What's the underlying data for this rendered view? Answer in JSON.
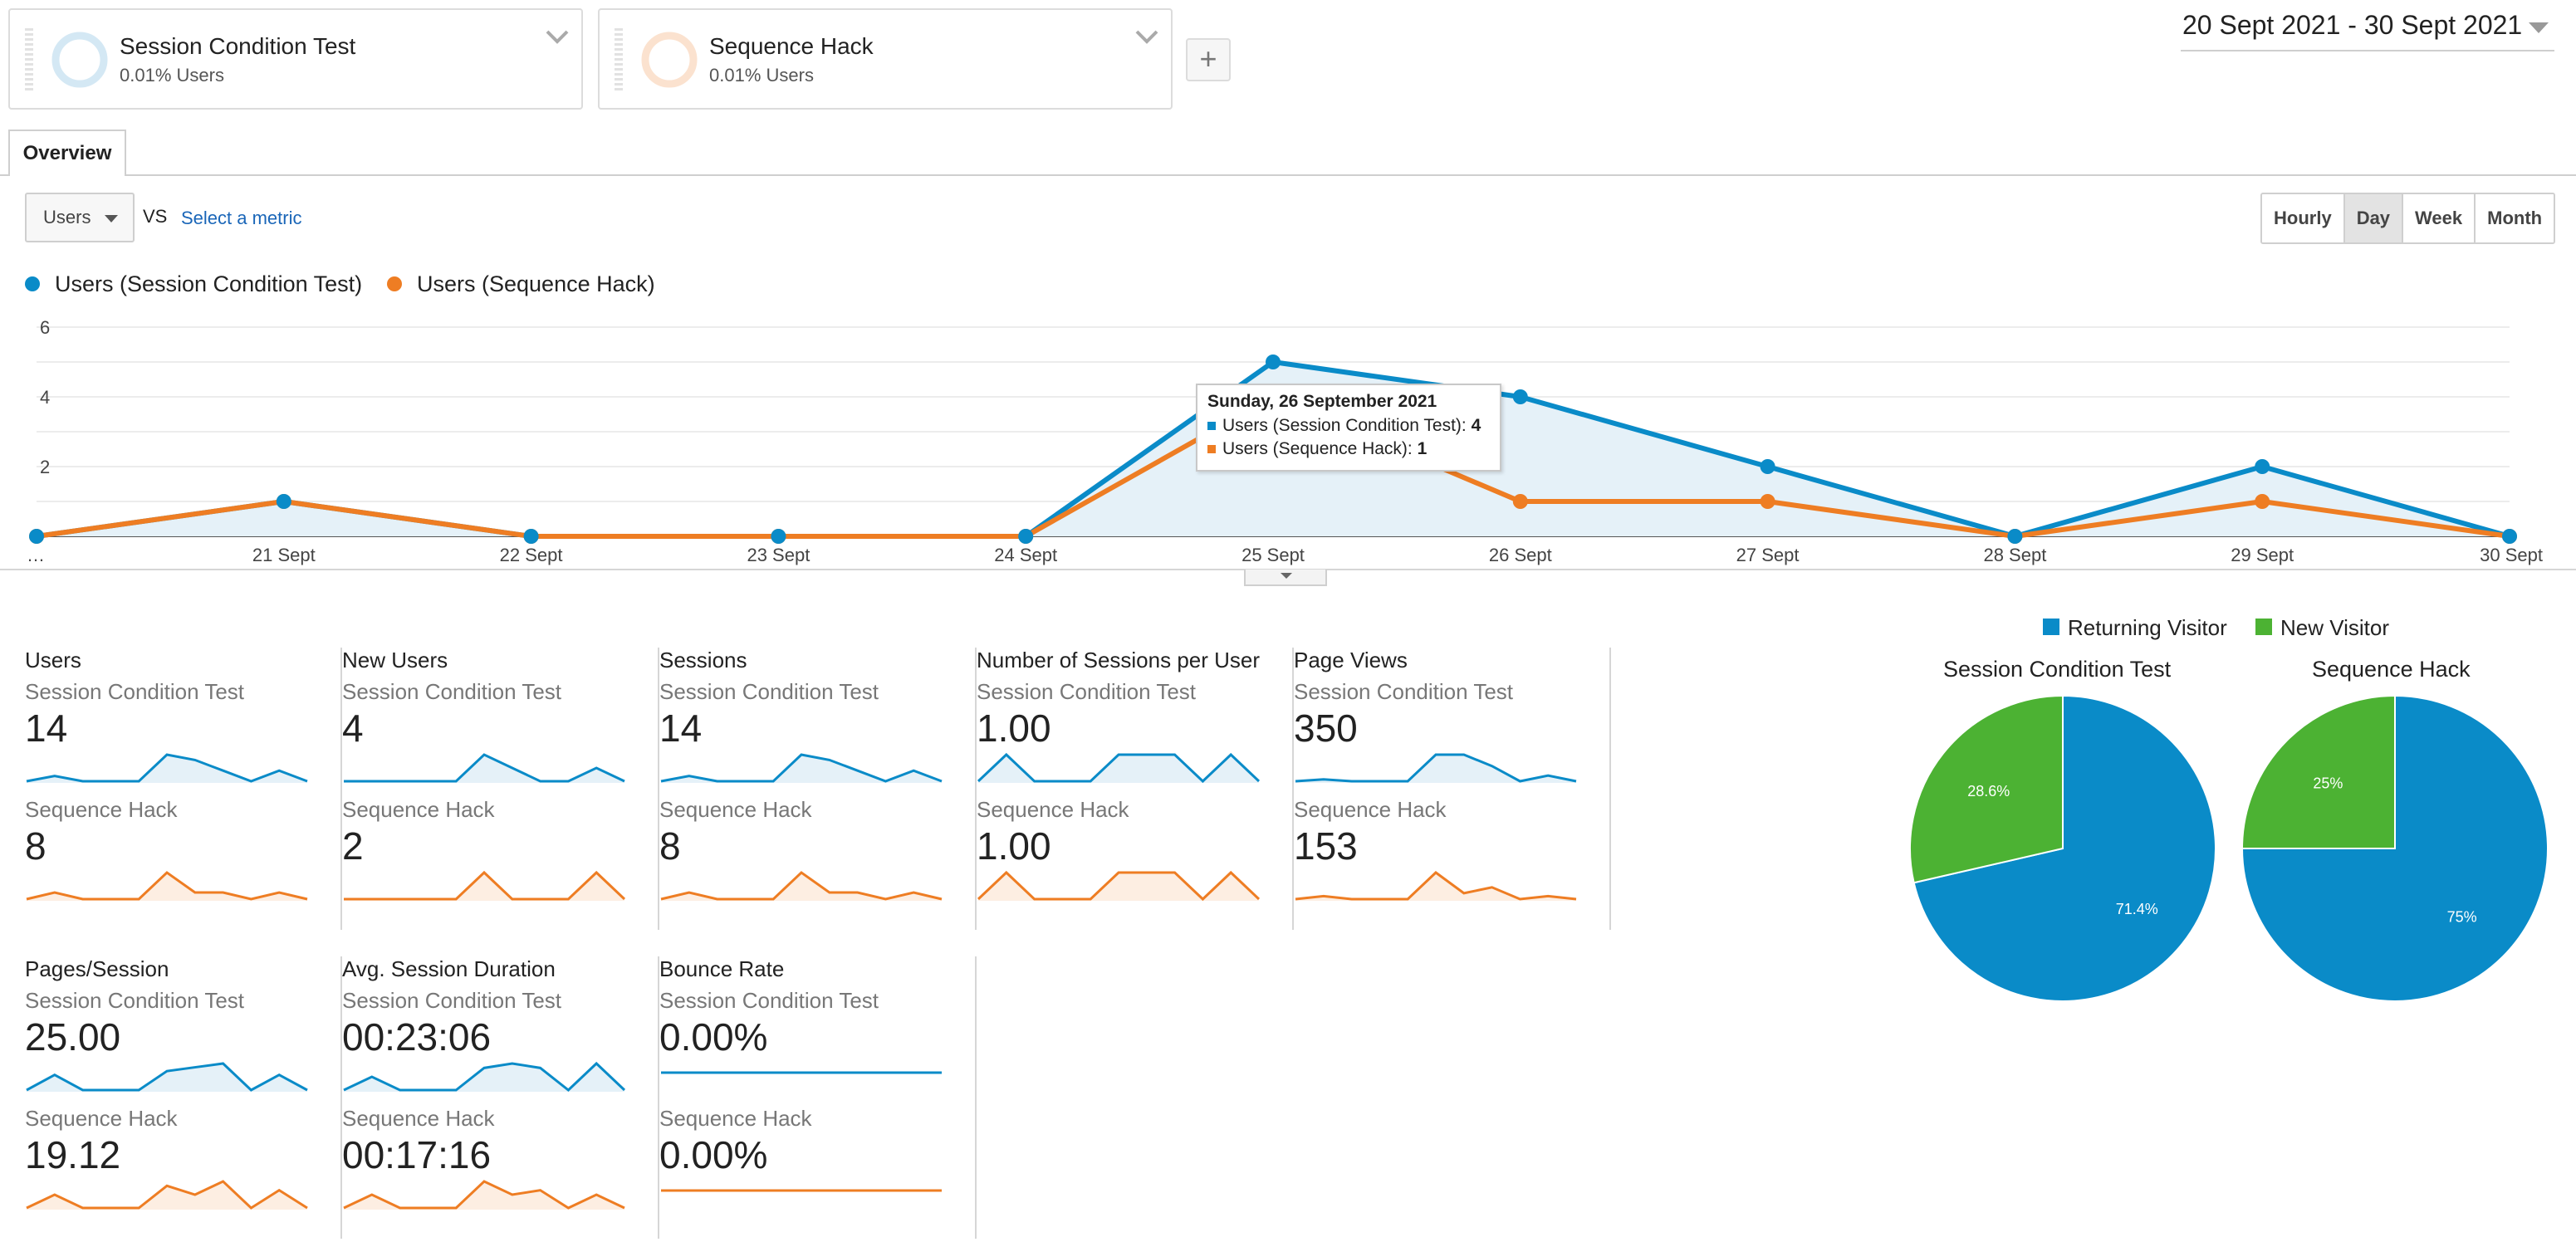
{
  "colors": {
    "series_a": "#0a8bc8",
    "series_b": "#ee7d23",
    "returning": "#0a8bc8",
    "new": "#4cb233"
  },
  "segments": [
    {
      "name": "Session Condition Test",
      "sub": "0.01% Users"
    },
    {
      "name": "Sequence Hack",
      "sub": "0.01% Users"
    }
  ],
  "add_segment": "+",
  "date_range": "20 Sept 2021 - 30 Sept 2021",
  "tabs": {
    "overview": "Overview"
  },
  "metric": {
    "selected": "Users",
    "vs": "VS",
    "select_metric": "Select a metric"
  },
  "granularity": [
    {
      "label": "Hourly",
      "active": false
    },
    {
      "label": "Day",
      "active": true
    },
    {
      "label": "Week",
      "active": false
    },
    {
      "label": "Month",
      "active": false
    }
  ],
  "legend": {
    "a": "Users (Session Condition Test)",
    "b": "Users (Sequence Hack)"
  },
  "chart_data": {
    "type": "line",
    "x": [
      "…",
      "21 Sept",
      "22 Sept",
      "23 Sept",
      "24 Sept",
      "25 Sept",
      "26 Sept",
      "27 Sept",
      "28 Sept",
      "29 Sept",
      "30 Sept"
    ],
    "series": [
      {
        "name": "Users (Session Condition Test)",
        "values": [
          0,
          1,
          0,
          0,
          0,
          5,
          4,
          2,
          0,
          2,
          0
        ]
      },
      {
        "name": "Users (Sequence Hack)",
        "values": [
          0,
          1,
          0,
          0,
          0,
          4,
          1,
          1,
          0,
          1,
          0
        ]
      }
    ],
    "yticks": [
      "2",
      "4",
      "6"
    ],
    "ylim": [
      0,
      6
    ],
    "grid": true,
    "fill_series": 0
  },
  "tooltip": {
    "title": "Sunday, 26 September 2021",
    "row_a_label": "Users (Session Condition Test):",
    "row_a_value": "4",
    "row_b_label": "Users (Sequence Hack):",
    "row_b_value": "1"
  },
  "scorecards": [
    {
      "title": "Users",
      "seg1": "Session Condition Test",
      "val1": "14",
      "seg2": "Sequence Hack",
      "val2": "8",
      "spark1": [
        0,
        1,
        0,
        0,
        0,
        5,
        4,
        2,
        0,
        2,
        0
      ],
      "spark2": [
        0,
        1,
        0,
        0,
        0,
        4,
        1,
        1,
        0,
        1,
        0
      ]
    },
    {
      "title": "New Users",
      "seg1": "Session Condition Test",
      "val1": "4",
      "seg2": "Sequence Hack",
      "val2": "2",
      "spark1": [
        0,
        0,
        0,
        0,
        0,
        2,
        1,
        0,
        0,
        1,
        0
      ],
      "spark2": [
        0,
        0,
        0,
        0,
        0,
        1,
        0,
        0,
        0,
        1,
        0
      ]
    },
    {
      "title": "Sessions",
      "seg1": "Session Condition Test",
      "val1": "14",
      "seg2": "Sequence Hack",
      "val2": "8",
      "spark1": [
        0,
        1,
        0,
        0,
        0,
        5,
        4,
        2,
        0,
        2,
        0
      ],
      "spark2": [
        0,
        1,
        0,
        0,
        0,
        4,
        1,
        1,
        0,
        1,
        0
      ]
    },
    {
      "title": "Number of Sessions per User",
      "seg1": "Session Condition Test",
      "val1": "1.00",
      "seg2": "Sequence Hack",
      "val2": "1.00",
      "spark1": [
        0,
        1,
        0,
        0,
        0,
        1,
        1,
        1,
        0,
        1,
        0
      ],
      "spark2": [
        0,
        1,
        0,
        0,
        0,
        1,
        1,
        1,
        0,
        1,
        0
      ]
    },
    {
      "title": "Page Views",
      "seg1": "Session Condition Test",
      "val1": "350",
      "seg2": "Sequence Hack",
      "val2": "153",
      "spark1": [
        0,
        1,
        0,
        0,
        0,
        14,
        14,
        8,
        0,
        3,
        0
      ],
      "spark2": [
        0,
        1,
        0,
        0,
        0,
        9,
        2,
        4,
        0,
        1,
        0
      ]
    },
    {
      "title": "Pages/Session",
      "seg1": "Session Condition Test",
      "val1": "25.00",
      "seg2": "Sequence Hack",
      "val2": "19.12",
      "spark1": [
        0,
        4,
        0,
        0,
        0,
        5,
        6,
        7,
        0,
        4,
        0
      ],
      "spark2": [
        0,
        3,
        0,
        0,
        0,
        5,
        3,
        6,
        0,
        4,
        0
      ]
    },
    {
      "title": "Avg. Session Duration",
      "seg1": "Session Condition Test",
      "val1": "00:23:06",
      "seg2": "Sequence Hack",
      "val2": "00:17:16",
      "spark1": [
        0,
        3,
        0,
        0,
        0,
        5,
        6,
        5,
        0,
        6,
        0
      ],
      "spark2": [
        0,
        3,
        0,
        0,
        0,
        6,
        3,
        4,
        0,
        3,
        0
      ]
    },
    {
      "title": "Bounce Rate",
      "seg1": "Session Condition Test",
      "val1": "0.00%",
      "seg2": "Sequence Hack",
      "val2": "0.00%",
      "spark1": [
        0,
        0,
        0,
        0,
        0,
        0,
        0,
        0,
        0,
        0,
        0
      ],
      "spark2": [
        0,
        0,
        0,
        0,
        0,
        0,
        0,
        0,
        0,
        0,
        0
      ],
      "flat": true
    }
  ],
  "pie_legend": {
    "returning": "Returning Visitor",
    "new": "New Visitor"
  },
  "pies": [
    {
      "title": "Session Condition Test",
      "returning": 71.4,
      "new": 28.6,
      "returning_label": "71.4%",
      "new_label": "28.6%"
    },
    {
      "title": "Sequence Hack",
      "returning": 75,
      "new": 25,
      "returning_label": "75%",
      "new_label": "25%"
    }
  ]
}
